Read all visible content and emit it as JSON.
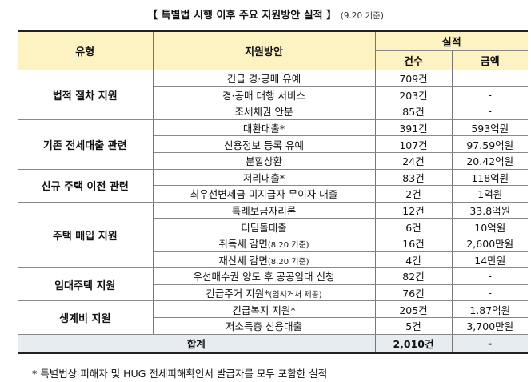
{
  "title": {
    "main": "【 특별법 시행 이후 주요 지원방안 실적 】",
    "sub": "(9.20 기준)"
  },
  "header": {
    "type": "유형",
    "plan": "지원방안",
    "result": "실적",
    "count": "건수",
    "amount": "금액"
  },
  "groups": [
    {
      "type": "법적 절차 지원",
      "rows": [
        {
          "plan": "긴급 경·공매 유예",
          "note": "",
          "count": "709건",
          "amount": ""
        },
        {
          "plan": "경·공매 대행 서비스",
          "note": "",
          "count": "203건",
          "amount": "-"
        },
        {
          "plan": "조세채권 안분",
          "note": "",
          "count": "85건",
          "amount": "-"
        }
      ]
    },
    {
      "type": "기존 전세대출 관련",
      "rows": [
        {
          "plan": "대환대출*",
          "note": "",
          "count": "391건",
          "amount": "593억원"
        },
        {
          "plan": "신용정보 등록 유예",
          "note": "",
          "count": "107건",
          "amount": "97.59억원"
        },
        {
          "plan": "분할상환",
          "note": "",
          "count": "24건",
          "amount": "20.42억원"
        }
      ]
    },
    {
      "type": "신규 주택 이전 관련",
      "rows": [
        {
          "plan": "저리대출*",
          "note": "",
          "count": "83건",
          "amount": "118억원"
        },
        {
          "plan": "최우선변제금 미지급자 무이자 대출",
          "note": "",
          "count": "2건",
          "amount": "1억원"
        }
      ]
    },
    {
      "type": "주택 매입 지원",
      "rows": [
        {
          "plan": "특례보금자리론",
          "note": "",
          "count": "12건",
          "amount": "33.8억원"
        },
        {
          "plan": "디딤돌대출",
          "note": "",
          "count": "6건",
          "amount": "10억원"
        },
        {
          "plan": "취득세 감면",
          "note": "(8.20 기준)",
          "count": "16건",
          "amount": "2,600만원"
        },
        {
          "plan": "재산세 감면",
          "note": "(8.20 기준)",
          "count": "4건",
          "amount": "14만원"
        }
      ]
    },
    {
      "type": "임대주택 지원",
      "rows": [
        {
          "plan": "우선매수권 양도 후 공공임대 신청",
          "note": "",
          "count": "82건",
          "amount": "-"
        },
        {
          "plan": "긴급주거 지원*",
          "note": "(임시거처 제공)",
          "count": "76건",
          "amount": "-"
        }
      ]
    },
    {
      "type": "생계비 지원",
      "rows": [
        {
          "plan": "긴급복지 지원*",
          "note": "",
          "count": "205건",
          "amount": "1.87억원"
        },
        {
          "plan": "저소득층 신용대출",
          "note": "",
          "count": "5건",
          "amount": "3,700만원"
        }
      ]
    }
  ],
  "total": {
    "label": "합계",
    "count": "2,010건",
    "amount": "-"
  },
  "footnote": "* 특별법상 피해자 및 HUG 전세피해확인서 발급자를 모두 포함한 실적",
  "colors": {
    "header_bg": "#fdf3c2",
    "total_bg": "#e7ecf1"
  }
}
